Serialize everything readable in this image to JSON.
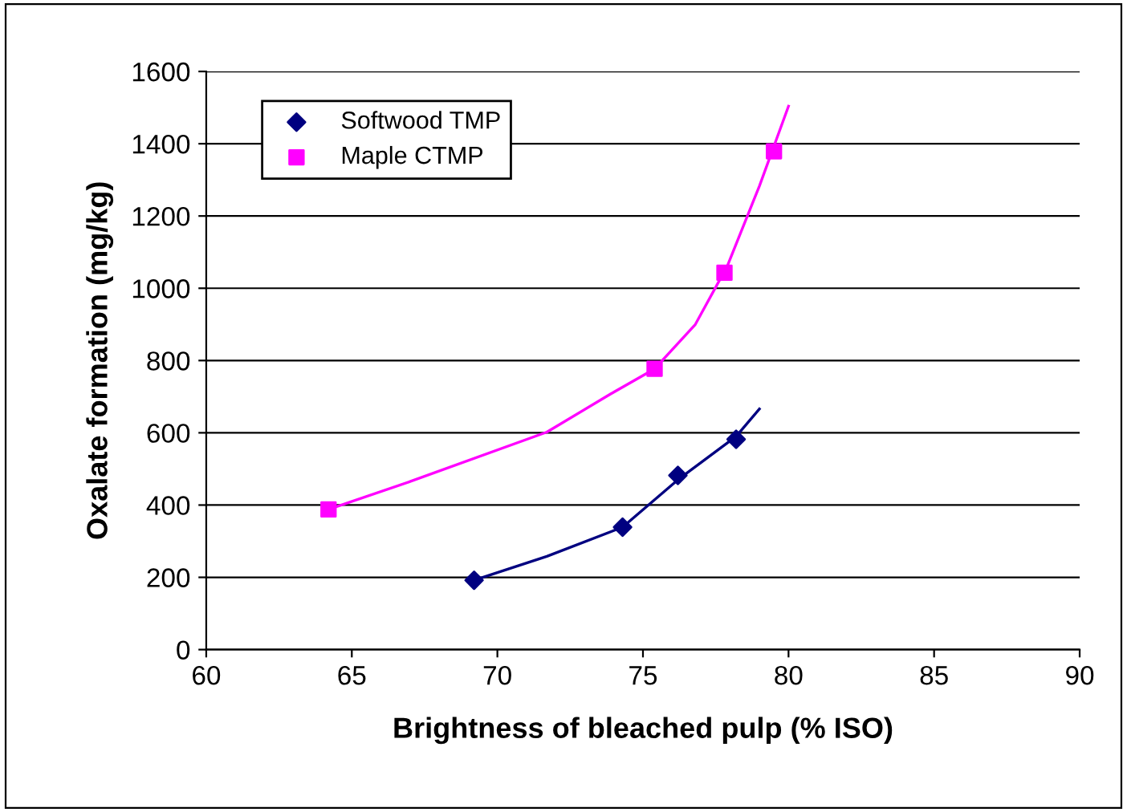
{
  "chart_data": {
    "type": "scatter",
    "xlabel": "Brightness of bleached pulp (% ISO)",
    "ylabel": "Oxalate formation (mg/kg)",
    "xlim": [
      60,
      90
    ],
    "xticks": [
      60,
      65,
      70,
      75,
      80,
      85,
      90
    ],
    "ylim": [
      0,
      1600
    ],
    "yticks": [
      0,
      200,
      400,
      600,
      800,
      1000,
      1200,
      1400,
      1600
    ],
    "grid": "y",
    "legend": "top left",
    "series": [
      {
        "name": "Softwood TMP",
        "color": "#000080",
        "marker": "diamond",
        "x": [
          69.2,
          74.3,
          76.2,
          78.2
        ],
        "values": [
          192,
          339,
          482,
          582
        ]
      },
      {
        "name": "Maple CTMP",
        "color": "#ff00ff",
        "marker": "square",
        "x": [
          64.2,
          75.4,
          77.8,
          79.5
        ],
        "values": [
          388,
          777,
          1043,
          1379
        ]
      },
      {
        "type": "line",
        "color": "#000080",
        "marker": "none",
        "x": [
          69.2,
          71.7,
          74.3,
          76.2,
          78.2,
          79.0
        ],
        "values": [
          192,
          258,
          339,
          470,
          590,
          666
        ]
      },
      {
        "type": "line",
        "color": "#ff00ff",
        "marker": "none",
        "x": [
          64.2,
          67.0,
          71.7,
          73.9,
          75.4,
          76.8,
          77.9,
          79.0,
          80.0
        ],
        "values": [
          388,
          465,
          602,
          708,
          777,
          900,
          1062,
          1283,
          1504
        ]
      }
    ]
  }
}
